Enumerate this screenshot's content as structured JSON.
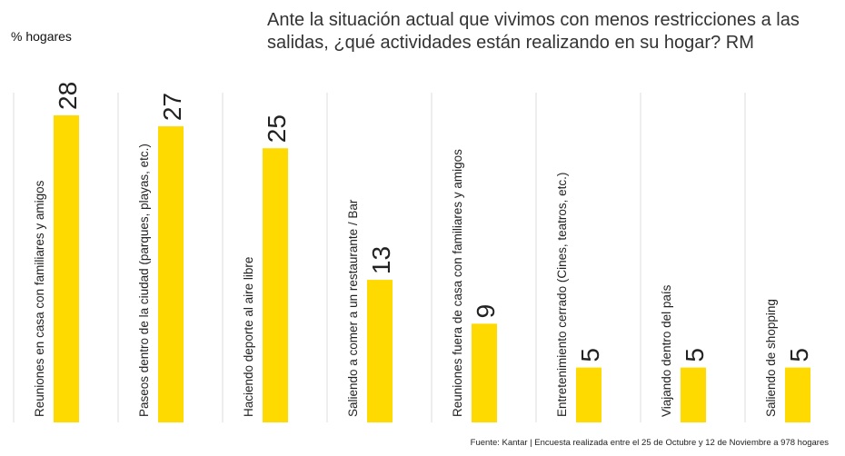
{
  "unit_label": "% hogares",
  "title": "Ante la situación actual que vivimos con menos restricciones a las salidas, ¿qué actividades están realizando en su hogar? RM",
  "source": "Fuente: Kantar | Encuesta realizada entre el 25 de Octubre y 12 de Noviembre a 978 hogares",
  "colors": {
    "bar": "#FFDA00",
    "divider": "#DCDCDC",
    "text": "#222222"
  },
  "chart_data": {
    "type": "bar",
    "categories": [
      "Reuniones en casa con familiares y amigos",
      "Paseos dentro de la ciudad (parques, playas, etc.)",
      "Haciendo deporte al aire libre",
      "Saliendo a comer a un restaurante / Bar",
      "Reuniones fuera de casa con familiares y amigos",
      "Entretenimiento cerrado (Cines, teatros, etc.)",
      "Viajando dentro del país",
      "Saliendo de shopping"
    ],
    "values": [
      28,
      27,
      25,
      13,
      9,
      5,
      5,
      5
    ],
    "ylim": [
      0,
      30
    ],
    "grid": false,
    "legend": "none"
  }
}
